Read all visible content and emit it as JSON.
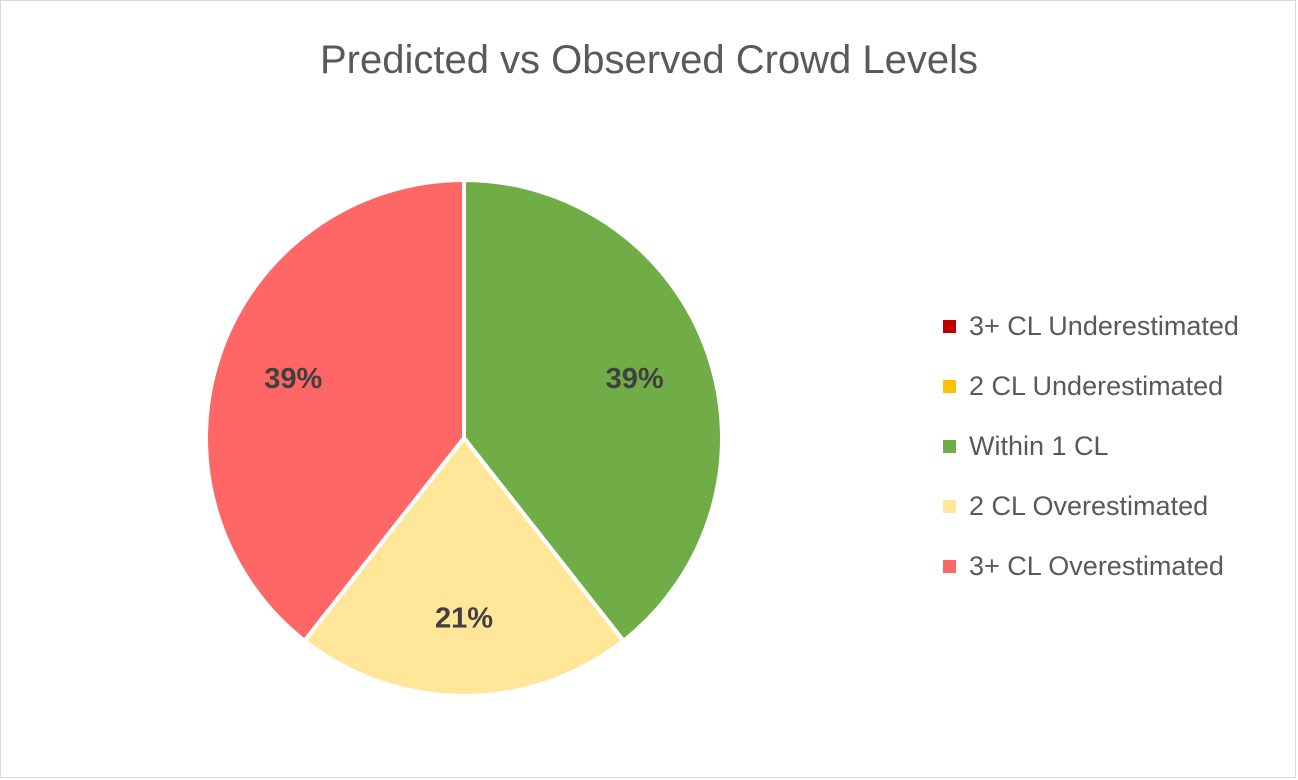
{
  "chart_data": {
    "type": "pie",
    "title": "Predicted vs Observed Crowd Levels",
    "categories": [
      "3+ CL Underestimated",
      "2 CL Underestimated",
      "Within 1 CL",
      "2 CL Overestimated",
      "3+ CL Overestimated"
    ],
    "values": [
      0,
      0,
      39,
      21,
      39
    ],
    "data_labels": [
      "",
      "",
      "39%",
      "21%",
      "39%"
    ],
    "colors": [
      "#C00000",
      "#FFC000",
      "#70AD47",
      "#FFE699",
      "#FF6666"
    ],
    "legend_position": "right"
  }
}
